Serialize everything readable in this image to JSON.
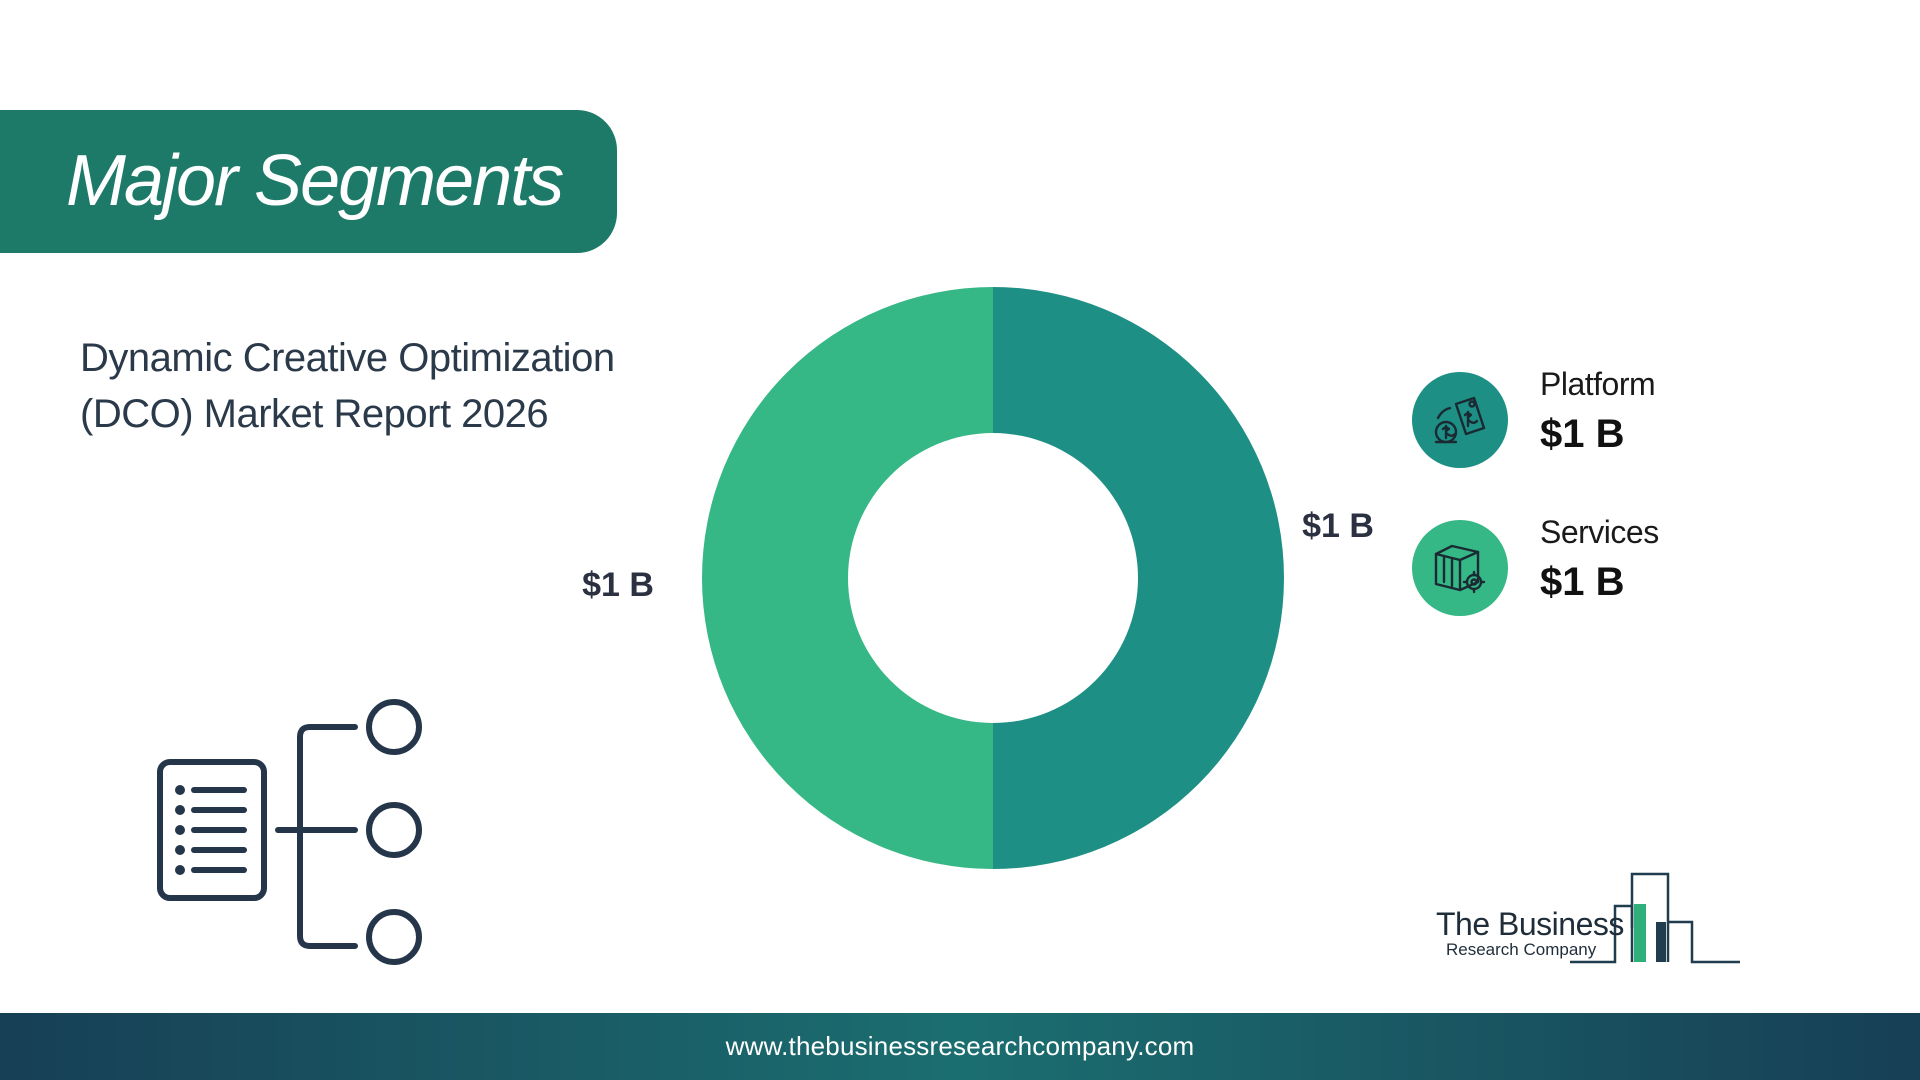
{
  "header": {
    "title": "Major Segments",
    "subtitle_line1": "Dynamic Creative Optimization",
    "subtitle_line2": "(DCO) Market Report 2026",
    "banner_color": "#1e7a68"
  },
  "chart_data": {
    "type": "pie",
    "donut": true,
    "categories": [
      "Platform",
      "Services"
    ],
    "values": [
      1,
      1
    ],
    "unit": "$ B",
    "data_labels": [
      "$1 B",
      "$1 B"
    ],
    "colors": [
      "#1d8f85",
      "#35b786"
    ],
    "legend": [
      {
        "name": "Platform",
        "value_label": "$1 B",
        "icon": "price-tag-coins-icon",
        "color": "#1d8f85"
      },
      {
        "name": "Services",
        "value_label": "$1 B",
        "icon": "box-gear-icon",
        "color": "#35b786"
      }
    ],
    "legend_position": "right"
  },
  "logo": {
    "line1": "The Business",
    "line2": "Research Company"
  },
  "footer": {
    "url": "www.thebusinessresearchcompany.com"
  }
}
